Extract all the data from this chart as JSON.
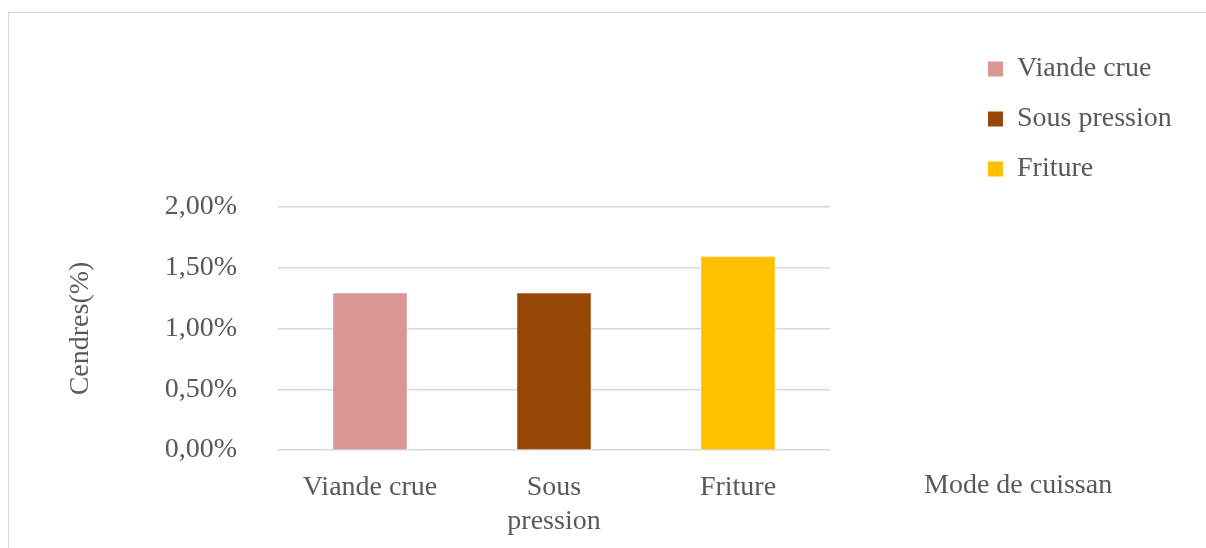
{
  "chart_data": {
    "type": "bar",
    "categories": [
      "Viande crue",
      "Sous pression",
      "Friture"
    ],
    "series": [
      {
        "name": "Viande crue",
        "color": "#d99694",
        "values": [
          1.29,
          null,
          null
        ]
      },
      {
        "name": "Sous pression",
        "color": "#974706",
        "values": [
          null,
          1.29,
          null
        ]
      },
      {
        "name": "Friture",
        "color": "#ffc000",
        "values": [
          null,
          null,
          1.59
        ]
      }
    ],
    "xlabel": "Mode de cuissan",
    "ylabel": "Cendres(%)",
    "ylim": [
      0,
      2
    ],
    "yticks": [
      {
        "value": 0,
        "label": "0,00%"
      },
      {
        "value": 0.5,
        "label": "0,50%"
      },
      {
        "value": 1,
        "label": "1,00%"
      },
      {
        "value": 1.5,
        "label": "1,50%"
      },
      {
        "value": 2,
        "label": "2,00%"
      }
    ],
    "grid": "y",
    "legend": "top right"
  }
}
